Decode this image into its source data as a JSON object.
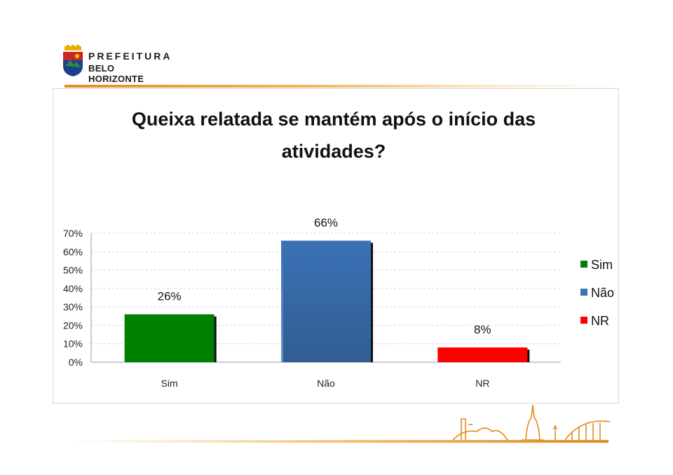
{
  "logo": {
    "line1": "PREFEITURA",
    "line2": "BELO HORIZONTE"
  },
  "chart_data": {
    "type": "bar",
    "title_lines": [
      "Queixa relatada se mantém após o início das",
      "atividades?"
    ],
    "categories": [
      "Sim",
      "Não",
      "NR"
    ],
    "values": [
      26,
      66,
      8
    ],
    "data_labels": [
      "26%",
      "66%",
      "8%"
    ],
    "colors": [
      "#008000",
      "#3a72b6",
      "#ff0000"
    ],
    "ylim": [
      0,
      70
    ],
    "yticks": [
      0,
      10,
      20,
      30,
      40,
      50,
      60,
      70
    ],
    "ytick_labels": [
      "0%",
      "10%",
      "20%",
      "30%",
      "40%",
      "50%",
      "60%",
      "70%"
    ],
    "grid": true,
    "legend": {
      "placement": "right",
      "entries": [
        "Sim",
        "Não",
        "NR"
      ]
    }
  }
}
